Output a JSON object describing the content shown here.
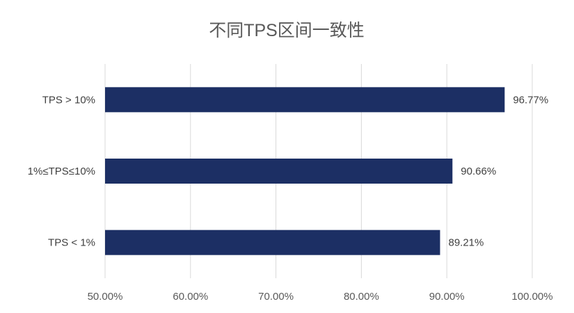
{
  "chart_data": {
    "type": "bar",
    "orientation": "horizontal",
    "title": "不同TPS区间一致性",
    "categories": [
      "TPS > 10%",
      "1%≤TPS≤10%",
      "TPS < 1%"
    ],
    "values": [
      96.77,
      90.66,
      89.21
    ],
    "data_labels": [
      "96.77%",
      "90.66%",
      "89.21%"
    ],
    "xlim": [
      50,
      100
    ],
    "x_ticks": [
      50,
      60,
      70,
      80,
      90,
      100
    ],
    "x_tick_labels": [
      "50.00%",
      "60.00%",
      "70.00%",
      "80.00%",
      "90.00%",
      "100.00%"
    ],
    "xlabel": "",
    "ylabel": "",
    "grid": "vertical",
    "legend": "none",
    "bar_color": "#1c2f64",
    "grid_color": "#d9d9d9"
  }
}
